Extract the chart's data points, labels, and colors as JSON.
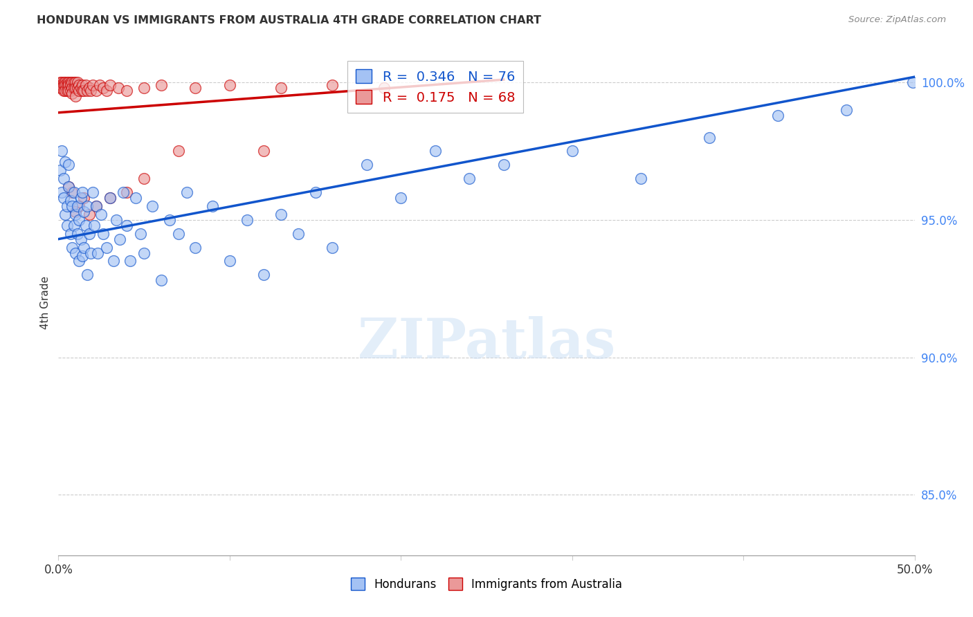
{
  "title": "HONDURAN VS IMMIGRANTS FROM AUSTRALIA 4TH GRADE CORRELATION CHART",
  "source": "Source: ZipAtlas.com",
  "ylabel": "4th Grade",
  "ytick_labels": [
    "85.0%",
    "90.0%",
    "95.0%",
    "100.0%"
  ],
  "ytick_values": [
    0.85,
    0.9,
    0.95,
    1.0
  ],
  "xlim": [
    0.0,
    0.5
  ],
  "ylim": [
    0.828,
    1.012
  ],
  "blue_color": "#a4c2f4",
  "pink_color": "#ea9999",
  "blue_line_color": "#1155cc",
  "pink_line_color": "#cc0000",
  "blue_trendline_x": [
    0.0,
    0.5
  ],
  "blue_trendline_y": [
    0.943,
    1.002
  ],
  "pink_trendline_x": [
    0.0,
    0.26
  ],
  "pink_trendline_y": [
    0.989,
    1.001
  ],
  "hondurans": [
    [
      0.001,
      0.968
    ],
    [
      0.002,
      0.975
    ],
    [
      0.002,
      0.96
    ],
    [
      0.003,
      0.965
    ],
    [
      0.003,
      0.958
    ],
    [
      0.004,
      0.971
    ],
    [
      0.004,
      0.952
    ],
    [
      0.005,
      0.955
    ],
    [
      0.005,
      0.948
    ],
    [
      0.006,
      0.962
    ],
    [
      0.006,
      0.97
    ],
    [
      0.007,
      0.957
    ],
    [
      0.007,
      0.945
    ],
    [
      0.008,
      0.955
    ],
    [
      0.008,
      0.94
    ],
    [
      0.009,
      0.96
    ],
    [
      0.009,
      0.948
    ],
    [
      0.01,
      0.952
    ],
    [
      0.01,
      0.938
    ],
    [
      0.011,
      0.955
    ],
    [
      0.011,
      0.945
    ],
    [
      0.012,
      0.95
    ],
    [
      0.012,
      0.935
    ],
    [
      0.013,
      0.958
    ],
    [
      0.013,
      0.943
    ],
    [
      0.014,
      0.96
    ],
    [
      0.014,
      0.937
    ],
    [
      0.015,
      0.953
    ],
    [
      0.015,
      0.94
    ],
    [
      0.016,
      0.948
    ],
    [
      0.017,
      0.955
    ],
    [
      0.017,
      0.93
    ],
    [
      0.018,
      0.945
    ],
    [
      0.019,
      0.938
    ],
    [
      0.02,
      0.96
    ],
    [
      0.021,
      0.948
    ],
    [
      0.022,
      0.955
    ],
    [
      0.023,
      0.938
    ],
    [
      0.025,
      0.952
    ],
    [
      0.026,
      0.945
    ],
    [
      0.028,
      0.94
    ],
    [
      0.03,
      0.958
    ],
    [
      0.032,
      0.935
    ],
    [
      0.034,
      0.95
    ],
    [
      0.036,
      0.943
    ],
    [
      0.038,
      0.96
    ],
    [
      0.04,
      0.948
    ],
    [
      0.042,
      0.935
    ],
    [
      0.045,
      0.958
    ],
    [
      0.048,
      0.945
    ],
    [
      0.05,
      0.938
    ],
    [
      0.055,
      0.955
    ],
    [
      0.06,
      0.928
    ],
    [
      0.065,
      0.95
    ],
    [
      0.07,
      0.945
    ],
    [
      0.075,
      0.96
    ],
    [
      0.08,
      0.94
    ],
    [
      0.09,
      0.955
    ],
    [
      0.1,
      0.935
    ],
    [
      0.11,
      0.95
    ],
    [
      0.12,
      0.93
    ],
    [
      0.13,
      0.952
    ],
    [
      0.14,
      0.945
    ],
    [
      0.15,
      0.96
    ],
    [
      0.16,
      0.94
    ],
    [
      0.18,
      0.97
    ],
    [
      0.2,
      0.958
    ],
    [
      0.22,
      0.975
    ],
    [
      0.24,
      0.965
    ],
    [
      0.26,
      0.97
    ],
    [
      0.3,
      0.975
    ],
    [
      0.34,
      0.965
    ],
    [
      0.38,
      0.98
    ],
    [
      0.42,
      0.988
    ],
    [
      0.46,
      0.99
    ],
    [
      0.499,
      1.0
    ]
  ],
  "australia": [
    [
      0.001,
      1.0
    ],
    [
      0.001,
      0.999
    ],
    [
      0.001,
      0.998
    ],
    [
      0.002,
      1.0
    ],
    [
      0.002,
      0.999
    ],
    [
      0.002,
      0.998
    ],
    [
      0.003,
      1.0
    ],
    [
      0.003,
      0.999
    ],
    [
      0.003,
      0.997
    ],
    [
      0.004,
      1.0
    ],
    [
      0.004,
      0.999
    ],
    [
      0.004,
      0.997
    ],
    [
      0.005,
      1.0
    ],
    [
      0.005,
      0.999
    ],
    [
      0.005,
      0.997
    ],
    [
      0.006,
      1.0
    ],
    [
      0.006,
      0.999
    ],
    [
      0.006,
      0.997
    ],
    [
      0.007,
      1.0
    ],
    [
      0.007,
      0.999
    ],
    [
      0.007,
      0.997
    ],
    [
      0.008,
      1.0
    ],
    [
      0.008,
      0.998
    ],
    [
      0.008,
      0.996
    ],
    [
      0.009,
      1.0
    ],
    [
      0.009,
      0.998
    ],
    [
      0.01,
      1.0
    ],
    [
      0.01,
      0.998
    ],
    [
      0.01,
      0.995
    ],
    [
      0.011,
      1.0
    ],
    [
      0.011,
      0.998
    ],
    [
      0.012,
      0.999
    ],
    [
      0.012,
      0.997
    ],
    [
      0.013,
      0.998
    ],
    [
      0.014,
      0.999
    ],
    [
      0.014,
      0.997
    ],
    [
      0.015,
      0.997
    ],
    [
      0.016,
      0.999
    ],
    [
      0.017,
      0.997
    ],
    [
      0.018,
      0.998
    ],
    [
      0.019,
      0.997
    ],
    [
      0.02,
      0.999
    ],
    [
      0.022,
      0.997
    ],
    [
      0.024,
      0.999
    ],
    [
      0.026,
      0.998
    ],
    [
      0.028,
      0.997
    ],
    [
      0.03,
      0.999
    ],
    [
      0.035,
      0.998
    ],
    [
      0.04,
      0.997
    ],
    [
      0.05,
      0.998
    ],
    [
      0.06,
      0.999
    ],
    [
      0.08,
      0.998
    ],
    [
      0.1,
      0.999
    ],
    [
      0.13,
      0.998
    ],
    [
      0.16,
      0.999
    ],
    [
      0.19,
      0.998
    ],
    [
      0.12,
      0.975
    ],
    [
      0.07,
      0.975
    ],
    [
      0.05,
      0.965
    ],
    [
      0.04,
      0.96
    ],
    [
      0.03,
      0.958
    ],
    [
      0.022,
      0.955
    ],
    [
      0.018,
      0.952
    ],
    [
      0.015,
      0.958
    ],
    [
      0.012,
      0.955
    ],
    [
      0.01,
      0.953
    ],
    [
      0.008,
      0.96
    ],
    [
      0.006,
      0.962
    ]
  ]
}
